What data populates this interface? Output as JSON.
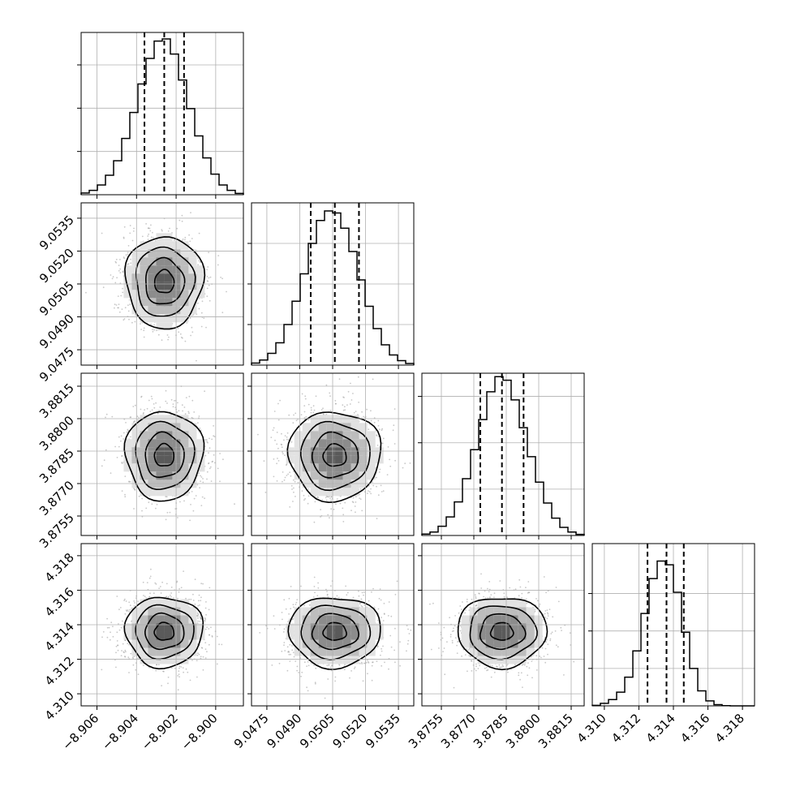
{
  "chart_data": {
    "type": "corner",
    "grid": true,
    "quantile_lines": [
      0.16,
      0.5,
      0.84
    ],
    "colors": {
      "hist": "#000000",
      "grid": "#b0b0b0",
      "scatter": "#9a9a9a",
      "contour": "#000000"
    },
    "params": [
      {
        "id": "p0",
        "center": -8.9026,
        "sigma": 0.00098,
        "range": [
          -8.9068,
          -8.8986
        ],
        "ticks": [
          -8.906,
          -8.904,
          -8.902,
          -8.9
        ],
        "tick_labels": [
          "−8.906",
          "−8.904",
          "−8.902",
          "−8.900"
        ],
        "quantiles": [
          -8.9036,
          -8.9026,
          -8.9016
        ]
      },
      {
        "id": "p1",
        "center": 9.0506,
        "sigma": 0.00105,
        "range": [
          9.0468,
          9.0542
        ],
        "ticks": [
          9.0475,
          9.049,
          9.0505,
          9.052,
          9.0535
        ],
        "tick_labels": [
          "9.0475",
          "9.0490",
          "9.0505",
          "9.0520",
          "9.0535"
        ],
        "quantiles": [
          9.0495,
          9.0506,
          9.0517
        ]
      },
      {
        "id": "p2",
        "center": 3.8783,
        "sigma": 0.00103,
        "range": [
          3.8746,
          3.8821
        ],
        "ticks": [
          3.8755,
          3.877,
          3.8785,
          3.88,
          3.8815
        ],
        "tick_labels": [
          "3.8755",
          "3.8770",
          "3.8785",
          "3.8800",
          "3.8815"
        ],
        "quantiles": [
          3.8773,
          3.8783,
          3.8793
        ]
      },
      {
        "id": "p3",
        "center": 4.3136,
        "sigma": 0.00102,
        "range": [
          4.3093,
          4.3187
        ],
        "ticks": [
          4.31,
          4.312,
          4.314,
          4.316,
          4.318
        ],
        "tick_labels": [
          "4.310",
          "4.312",
          "4.314",
          "4.316",
          "4.318"
        ],
        "quantiles": [
          4.3125,
          4.3136,
          4.3146
        ]
      }
    ],
    "histograms": [
      {
        "param": 0,
        "bins": 20,
        "counts": [
          0.8,
          2.0,
          4.5,
          9.0,
          15.7,
          26.0,
          38.0,
          51.2,
          63.0,
          71.0,
          72.0,
          65.0,
          53.0,
          39.8,
          27.2,
          17.0,
          9.5,
          4.5,
          2.0,
          0.6
        ],
        "ymax": 75,
        "yticks": [
          20,
          40,
          60
        ]
      },
      {
        "param": 1,
        "bins": 20,
        "counts": [
          1.0,
          2.5,
          5.8,
          11.0,
          20.0,
          31.5,
          45.0,
          60.0,
          71.3,
          76.0,
          75.0,
          67.5,
          56.0,
          42.0,
          29.0,
          18.0,
          10.0,
          5.0,
          2.2,
          0.8
        ],
        "ymax": 80,
        "yticks": [
          20,
          40,
          60
        ]
      },
      {
        "param": 2,
        "bins": 20,
        "counts": [
          0.6,
          1.5,
          4.0,
          8.0,
          14.5,
          24.5,
          37.0,
          50.0,
          62.0,
          68.5,
          67.0,
          58.5,
          46.5,
          34.0,
          23.0,
          14.0,
          7.5,
          3.5,
          1.5,
          0.5
        ],
        "ymax": 70,
        "yticks": [
          20,
          40,
          60
        ]
      },
      {
        "param": 3,
        "bins": 20,
        "counts": [
          0.2,
          1.0,
          2.5,
          5.5,
          11.5,
          22.0,
          37.0,
          51.0,
          58.0,
          56.5,
          45.5,
          29.5,
          15.0,
          6.0,
          2.0,
          0.5,
          0.1,
          0.0,
          0.0,
          0.0
        ],
        "ymax": 65,
        "yticks": [
          15,
          30,
          45
        ]
      }
    ],
    "pairs": [
      {
        "x": 0,
        "y": 1
      },
      {
        "x": 0,
        "y": 2
      },
      {
        "x": 1,
        "y": 2
      },
      {
        "x": 0,
        "y": 3
      },
      {
        "x": 1,
        "y": 3
      },
      {
        "x": 2,
        "y": 3
      }
    ],
    "contour_sigma_levels": [
      0.5,
      1.0,
      1.5,
      2.0
    ]
  }
}
